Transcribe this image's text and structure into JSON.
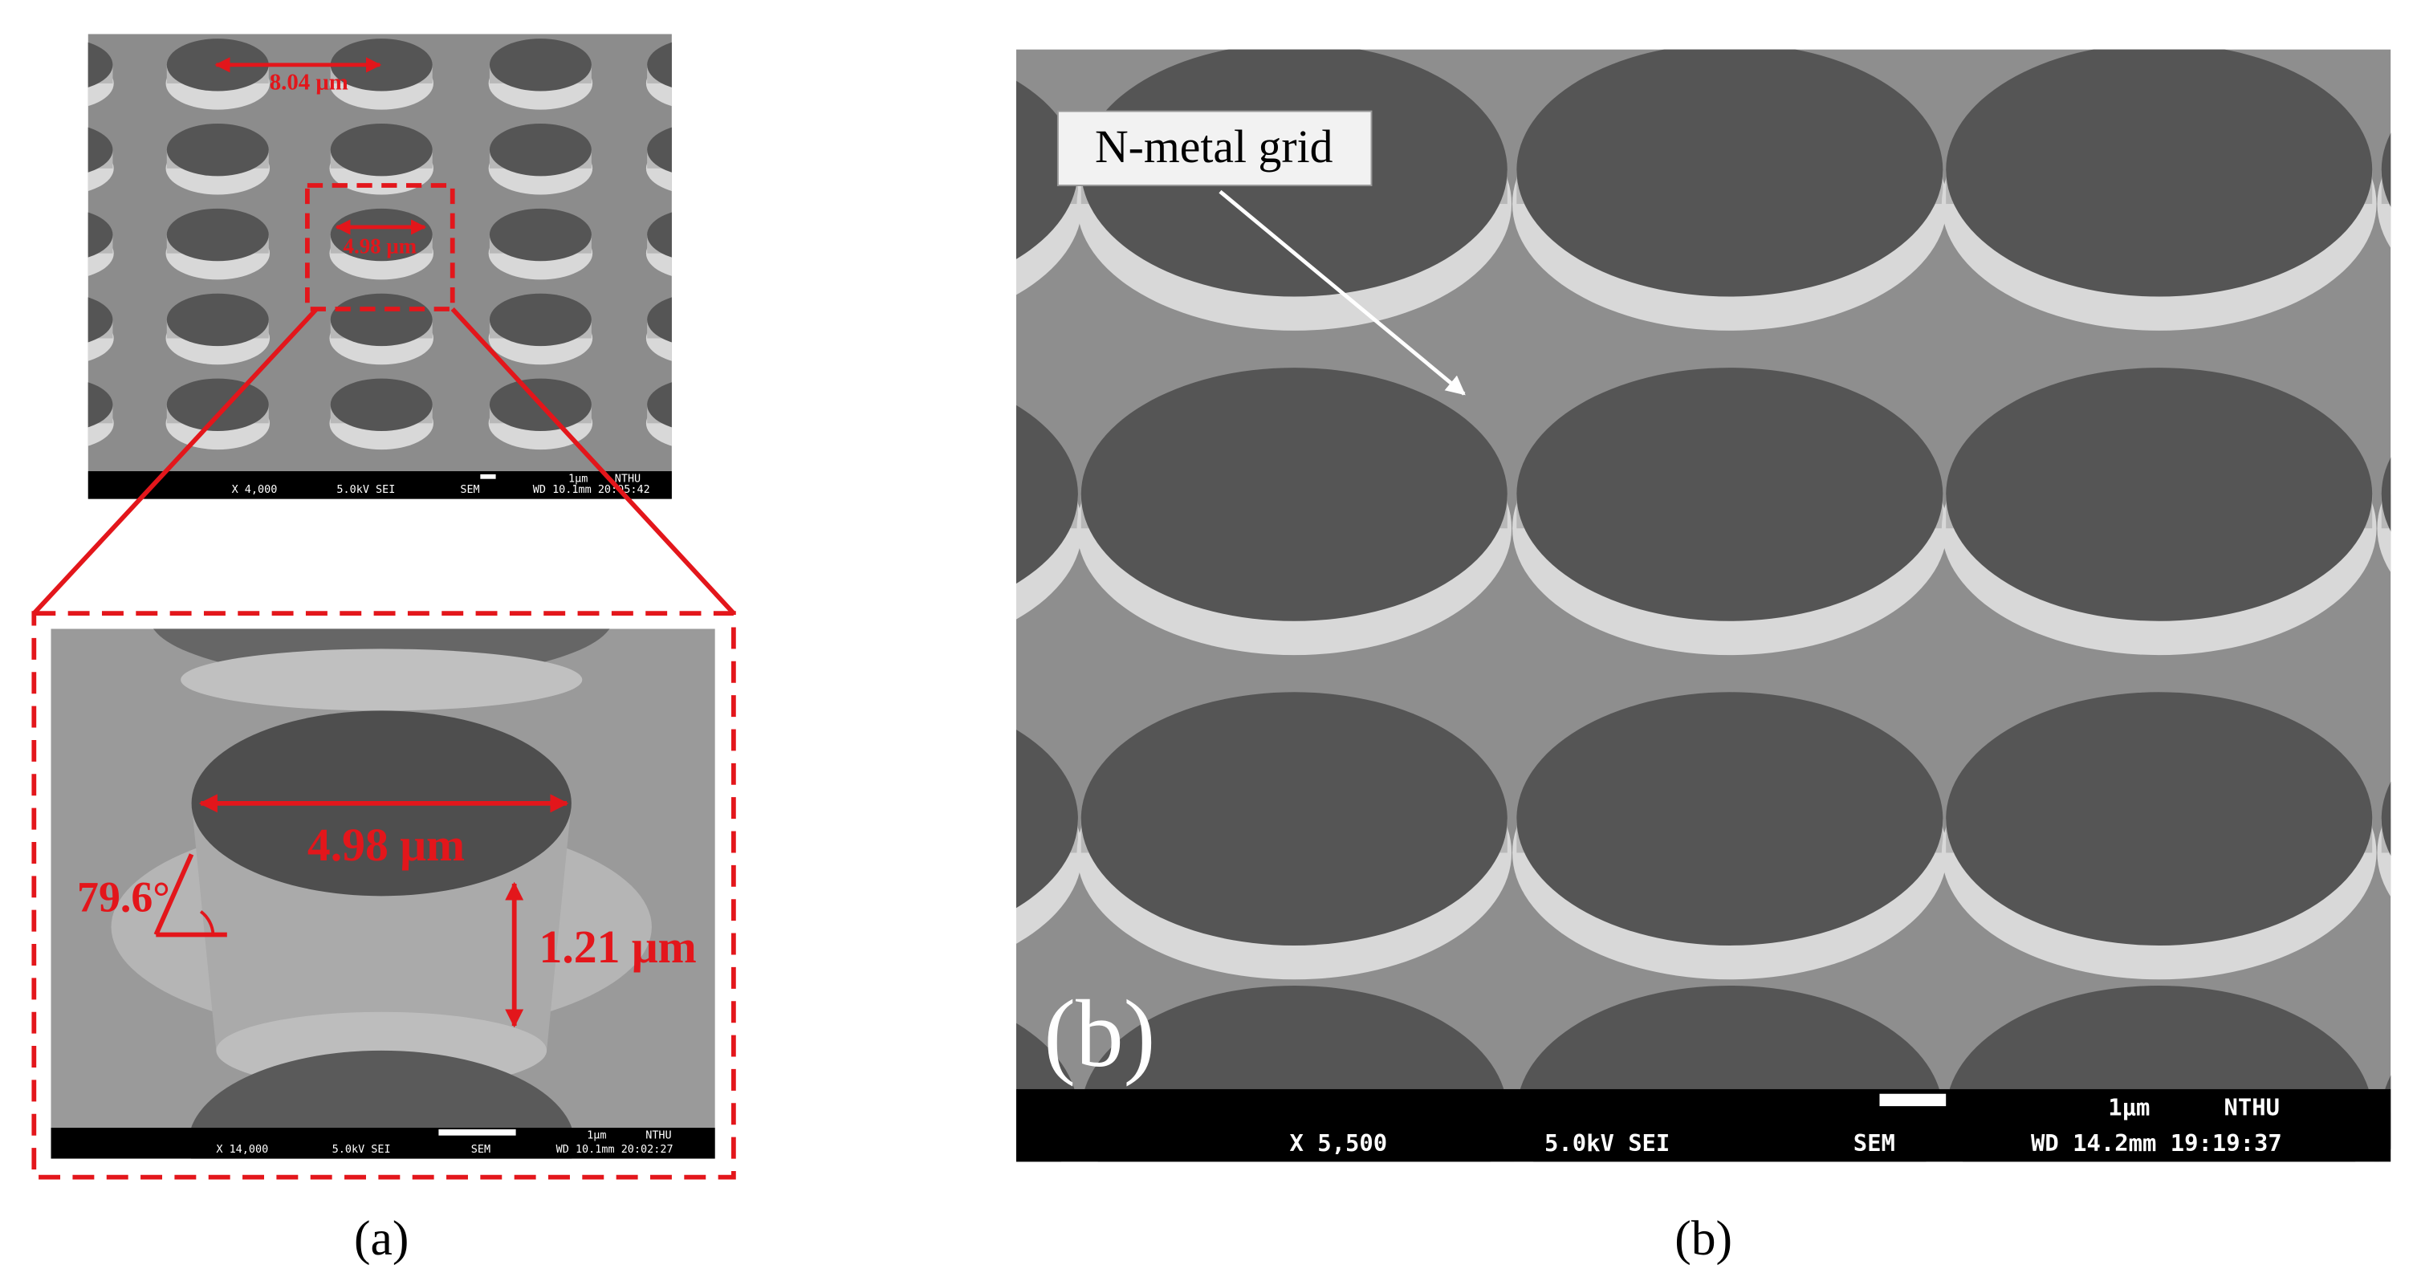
{
  "panel_a": {
    "overview": {
      "labels": [
        "8.04 μm",
        "4.98 μm"
      ],
      "footer": {
        "magnification": "X 4,000",
        "voltage": "5.0kV SEI",
        "mode": "SEM",
        "scale": "1μm",
        "lab": "NTHU",
        "wd_time": "WD 10.1mm 20:05:42"
      }
    },
    "inset": {
      "diameter": "4.98 μm",
      "angle": "79.6°",
      "height": "1.21 μm",
      "footer": {
        "magnification": "X 14,000",
        "voltage": "5.0kV SEI",
        "mode": "SEM",
        "scale": "1μm",
        "lab": "NTHU",
        "wd_time": "WD 10.1mm 20:02:27"
      }
    },
    "caption": "(a)"
  },
  "panel_b": {
    "label": "N-metal grid",
    "tag": "(b)",
    "footer": {
      "magnification": "X 5,500",
      "voltage": "5.0kV SEI",
      "mode": "SEM",
      "scale": "1μm",
      "lab": "NTHU",
      "wd_time": "WD 14.2mm 19:19:37"
    },
    "caption": "(b)"
  }
}
